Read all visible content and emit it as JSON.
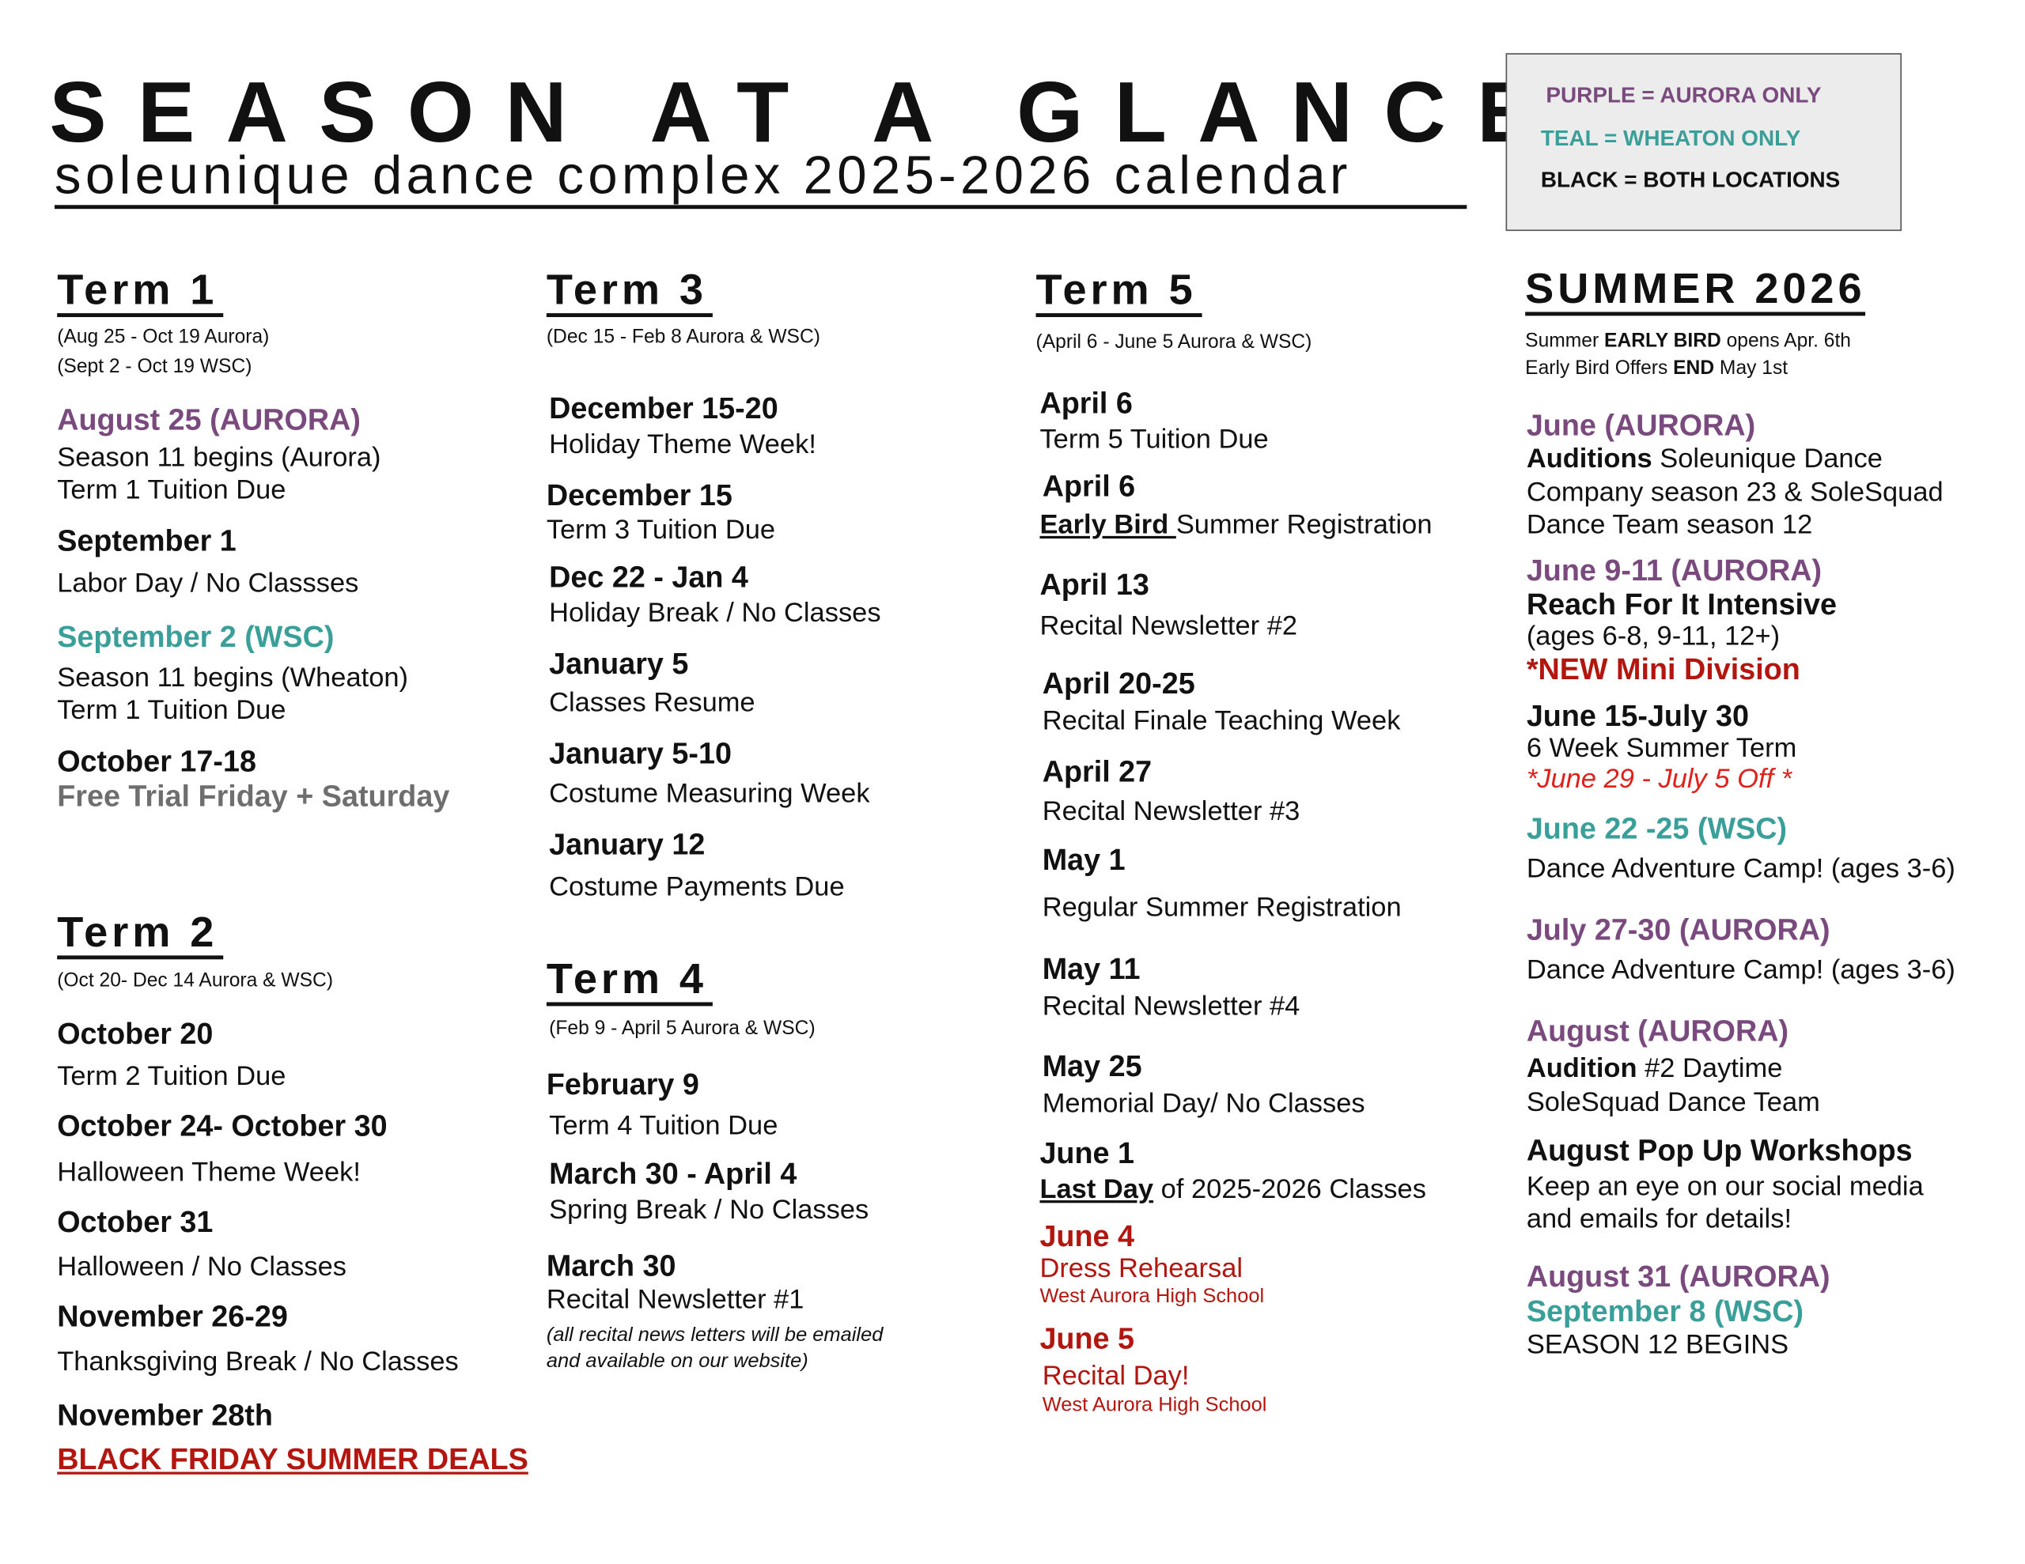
{
  "header": {
    "title": "SEASON AT A GLANCE",
    "subtitle": "soleunique dance complex 2025-2026 calendar"
  },
  "legend": {
    "purple": "PURPLE = AURORA ONLY",
    "teal": "TEAL = WHEATON ONLY",
    "black": "BLACK = BOTH LOCATIONS"
  },
  "colors": {
    "aurora": "#7a4a7f",
    "wheaton": "#3a9f99",
    "highlight": "#b3160f",
    "both": "#111111"
  },
  "term1": {
    "title": "Term 1",
    "ranges": [
      "(Aug 25 - Oct 19 Aurora)",
      "(Sept 2 - Oct 19 WSC)"
    ],
    "events": [
      {
        "date": "August 25 (AURORA)",
        "lines": [
          "Season 11  begins (Aurora)",
          "Term 1 Tuition Due"
        ]
      },
      {
        "date": "September 1",
        "lines": [
          "Labor Day / No Classses"
        ]
      },
      {
        "date": "September 2 (WSC)",
        "lines": [
          "Season 11 begins (Wheaton)",
          "Term 1 Tuition Due"
        ]
      },
      {
        "date": "October 17-18",
        "lines": [
          "Free Trial Friday + Saturday"
        ]
      }
    ]
  },
  "term2": {
    "title": "Term 2",
    "ranges": [
      "(Oct 20- Dec 14 Aurora & WSC)"
    ],
    "events": [
      {
        "date": "October 20",
        "lines": [
          "Term 2 Tuition Due"
        ]
      },
      {
        "date": "October 24- October 30",
        "lines": [
          "Halloween Theme Week!"
        ]
      },
      {
        "date": "October 31",
        "lines": [
          "Halloween / No Classes"
        ]
      },
      {
        "date": "November 26-29",
        "lines": [
          "Thanksgiving Break / No Classes"
        ]
      },
      {
        "date": "November 28th",
        "lines": [
          "BLACK FRIDAY SUMMER DEALS"
        ]
      }
    ]
  },
  "term3": {
    "title": "Term 3",
    "ranges": [
      "(Dec 15 - Feb 8 Aurora & WSC)"
    ],
    "events": [
      {
        "date": "December 15-20",
        "lines": [
          "Holiday Theme Week!"
        ]
      },
      {
        "date": "December 15",
        "lines": [
          "Term 3 Tuition Due"
        ]
      },
      {
        "date": "Dec 22 - Jan 4",
        "lines": [
          "Holiday Break / No Classes"
        ]
      },
      {
        "date": "January 5",
        "lines": [
          "Classes Resume"
        ]
      },
      {
        "date": "January 5-10",
        "lines": [
          "Costume Measuring Week"
        ]
      },
      {
        "date": "January 12",
        "lines": [
          "Costume Payments Due"
        ]
      }
    ]
  },
  "term4": {
    "title": "Term 4",
    "ranges": [
      "(Feb 9 - April 5 Aurora & WSC)"
    ],
    "events": [
      {
        "date": "February 9",
        "lines": [
          "Term 4 Tuition Due"
        ]
      },
      {
        "date": "March 30 - April 4",
        "lines": [
          "Spring Break / No Classes"
        ]
      },
      {
        "date": "March 30",
        "lines": [
          "Recital Newsletter #1",
          "(all recital news letters will be emailed",
          "and available on our website)"
        ]
      }
    ]
  },
  "term5": {
    "title": "Term 5",
    "ranges": [
      "(April 6 - June 5 Aurora & WSC)"
    ],
    "events": [
      {
        "date": "April 6",
        "lines": [
          "Term 5 Tuition Due"
        ]
      },
      {
        "date": "April 6",
        "lines": [
          {
            "b": "Early Bird ",
            "post": "Summer Registration"
          }
        ]
      },
      {
        "date": "April 13",
        "lines": [
          "Recital Newsletter #2"
        ]
      },
      {
        "date": "April 20-25",
        "lines": [
          "Recital Finale Teaching Week"
        ]
      },
      {
        "date": "April 27",
        "lines": [
          "Recital Newsletter #3"
        ]
      },
      {
        "date": "May 1",
        "lines": [
          "Regular Summer Registration"
        ]
      },
      {
        "date": "May 11",
        "lines": [
          "Recital Newsletter #4"
        ]
      },
      {
        "date": "May 25",
        "lines": [
          "Memorial Day/ No Classes"
        ]
      },
      {
        "date": "June 1",
        "lines": [
          {
            "b": "Last Day",
            "post": " of 2025-2026 Classes"
          }
        ]
      },
      {
        "date": "June 4",
        "lines": [
          "Dress Rehearsal",
          "West Aurora High School"
        ]
      },
      {
        "date": "June 5",
        "lines": [
          "Recital Day!",
          "West Aurora High School"
        ]
      }
    ]
  },
  "summer": {
    "title": "SUMMER 2026",
    "intro": [
      {
        "pre": "Summer ",
        "b": "EARLY BIRD",
        "post": " opens Apr. 6th"
      },
      {
        "pre": "Early Bird Offers ",
        "b": "END",
        "post": " May 1st"
      }
    ],
    "events": [
      {
        "date": "June (AURORA)",
        "lines": [
          {
            "b": "Auditions",
            "post": " Soleunique Dance"
          },
          "Company season 23 & SoleSquad",
          "Dance Team season 12"
        ]
      },
      {
        "date": "June 9-11 (AURORA)",
        "lines": [
          "Reach For It Intensive",
          "(ages 6-8, 9-11, 12+)",
          " *NEW Mini Division"
        ]
      },
      {
        "date": "June 15-July 30",
        "lines": [
          "6 Week Summer Term",
          "*June 29 - July 5 Off *"
        ]
      },
      {
        "date": "June 22 -25 (WSC)",
        "lines": [
          "Dance Adventure Camp! (ages 3-6)"
        ]
      },
      {
        "date": "July 27-30 (AURORA)",
        "lines": [
          "Dance Adventure Camp! (ages 3-6)"
        ]
      },
      {
        "date": "August (AURORA)",
        "lines": [
          {
            "b": "Audition",
            "post": " #2 Daytime"
          },
          "SoleSquad Dance Team"
        ]
      },
      {
        "date": "August Pop Up Workshops",
        "lines": [
          "Keep an eye on our social media",
          "and emails for details!"
        ]
      },
      {
        "date": "August 31 (AURORA)",
        "lines": [
          "September 8 (WSC)",
          "SEASON 12 BEGINS"
        ]
      }
    ]
  }
}
